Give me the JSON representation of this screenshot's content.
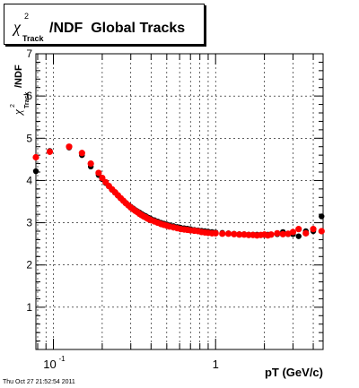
{
  "chart_data": {
    "type": "scatter",
    "title": {
      "chi": "χ",
      "sup": "2",
      "sub": "Track",
      "rest": "/NDF  Global Tracks"
    },
    "ylabel": {
      "chi": "χ",
      "sup": "2",
      "sub": "Track",
      "rest": "/NDF"
    },
    "xlabel": "pT (GeV/c)",
    "timestamp": "Thu Oct 27 21:52:54 2011",
    "x_scale": "log",
    "xlim": [
      0.078,
      4.6
    ],
    "ylim": [
      0,
      7
    ],
    "x_tick_labels": [
      {
        "value": 0.1,
        "base": "10",
        "exp": "-1"
      },
      {
        "value": 1,
        "base": "1",
        "exp": ""
      }
    ],
    "y_tick_labels": [
      "1",
      "2",
      "3",
      "4",
      "5",
      "6",
      "7"
    ],
    "grid": true,
    "colors": {
      "series_black": "#000000",
      "series_red": "#ff0000"
    },
    "series": [
      {
        "color": "black",
        "x": [
          0.078,
          0.095,
          0.125,
          0.15,
          0.17,
          0.19,
          0.2,
          0.21,
          0.22,
          0.23,
          0.24,
          0.25,
          0.26,
          0.27,
          0.28,
          0.29,
          0.3,
          0.31,
          0.32,
          0.33,
          0.34,
          0.35,
          0.36,
          0.37,
          0.38,
          0.39,
          0.4,
          0.42,
          0.44,
          0.46,
          0.48,
          0.5,
          0.52,
          0.55,
          0.58,
          0.61,
          0.64,
          0.67,
          0.7,
          0.74,
          0.78,
          0.82,
          0.86,
          0.9,
          0.95,
          1.0,
          1.1,
          1.2,
          1.3,
          1.4,
          1.5,
          1.6,
          1.7,
          1.8,
          1.9,
          2.0,
          2.1,
          2.2,
          2.4,
          2.6,
          2.8,
          3.0,
          3.25,
          3.6,
          4.0,
          4.5
        ],
        "y": [
          4.22,
          4.7,
          4.78,
          4.6,
          4.33,
          4.13,
          4.03,
          3.94,
          3.86,
          3.78,
          3.71,
          3.64,
          3.58,
          3.52,
          3.47,
          3.42,
          3.38,
          3.34,
          3.3,
          3.27,
          3.24,
          3.21,
          3.18,
          3.16,
          3.13,
          3.11,
          3.09,
          3.06,
          3.03,
          3.0,
          2.98,
          2.96,
          2.94,
          2.92,
          2.9,
          2.88,
          2.87,
          2.86,
          2.85,
          2.83,
          2.82,
          2.81,
          2.8,
          2.79,
          2.78,
          2.77,
          2.76,
          2.75,
          2.74,
          2.73,
          2.73,
          2.72,
          2.72,
          2.72,
          2.71,
          2.71,
          2.72,
          2.72,
          2.73,
          2.78,
          2.73,
          2.73,
          2.68,
          2.8,
          2.8,
          3.15
        ]
      },
      {
        "color": "red",
        "x": [
          0.078,
          0.095,
          0.125,
          0.15,
          0.17,
          0.19,
          0.2,
          0.21,
          0.22,
          0.23,
          0.24,
          0.25,
          0.26,
          0.27,
          0.28,
          0.29,
          0.3,
          0.31,
          0.32,
          0.33,
          0.34,
          0.35,
          0.36,
          0.37,
          0.38,
          0.39,
          0.4,
          0.42,
          0.44,
          0.46,
          0.48,
          0.5,
          0.52,
          0.55,
          0.58,
          0.61,
          0.64,
          0.67,
          0.7,
          0.74,
          0.78,
          0.82,
          0.86,
          0.9,
          0.95,
          1.0,
          1.1,
          1.2,
          1.3,
          1.4,
          1.5,
          1.6,
          1.7,
          1.8,
          1.9,
          2.0,
          2.1,
          2.2,
          2.4,
          2.6,
          2.8,
          3.0,
          3.25,
          3.6,
          4.0,
          4.5
        ],
        "y": [
          4.55,
          4.68,
          4.8,
          4.65,
          4.4,
          4.18,
          4.06,
          3.96,
          3.87,
          3.79,
          3.72,
          3.65,
          3.58,
          3.52,
          3.46,
          3.41,
          3.36,
          3.32,
          3.28,
          3.25,
          3.21,
          3.18,
          3.15,
          3.13,
          3.1,
          3.08,
          3.06,
          3.03,
          3.0,
          2.97,
          2.95,
          2.93,
          2.91,
          2.89,
          2.87,
          2.85,
          2.84,
          2.83,
          2.82,
          2.81,
          2.8,
          2.78,
          2.77,
          2.76,
          2.75,
          2.75,
          2.74,
          2.74,
          2.73,
          2.72,
          2.72,
          2.71,
          2.71,
          2.7,
          2.71,
          2.72,
          2.7,
          2.72,
          2.75,
          2.73,
          2.74,
          2.78,
          2.85,
          2.75,
          2.85,
          2.8
        ]
      }
    ]
  }
}
